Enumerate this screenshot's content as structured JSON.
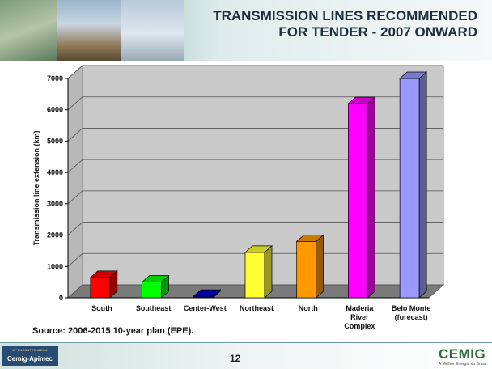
{
  "slide": {
    "title_line1": "TRANSMISSION LINES RECOMMENDED",
    "title_line2": "FOR TENDER - 2007 ONWARD",
    "source": "Source: 2006-2015 10-year plan (EPE).",
    "page_number": "12",
    "logo_left_top": "11º ENCONTRO ANUAL",
    "logo_left_main": "Cemig-Apimec",
    "logo_right_main": "CEMIG",
    "logo_right_tagline": "A Melhor Energia do Brasil."
  },
  "chart_data": {
    "type": "bar",
    "title": "",
    "xlabel": "",
    "ylabel": "Transmission line extension (km)",
    "ylim": [
      0,
      7000
    ],
    "yticks": [
      0,
      1000,
      2000,
      3000,
      4000,
      5000,
      6000,
      7000
    ],
    "grid": true,
    "categories": [
      [
        "South"
      ],
      [
        "Southeast"
      ],
      [
        "Center-West"
      ],
      [
        "Northeast"
      ],
      [
        "North"
      ],
      [
        "Maderia",
        "River",
        "Complex"
      ],
      [
        "Belo Monte",
        "(forecast)"
      ]
    ],
    "values": [
      650,
      500,
      50,
      1450,
      1800,
      6200,
      7000
    ],
    "colors": [
      "#ff0000",
      "#00ff00",
      "#0000cc",
      "#ffff33",
      "#ff9900",
      "#ff00ff",
      "#9999ff"
    ]
  }
}
